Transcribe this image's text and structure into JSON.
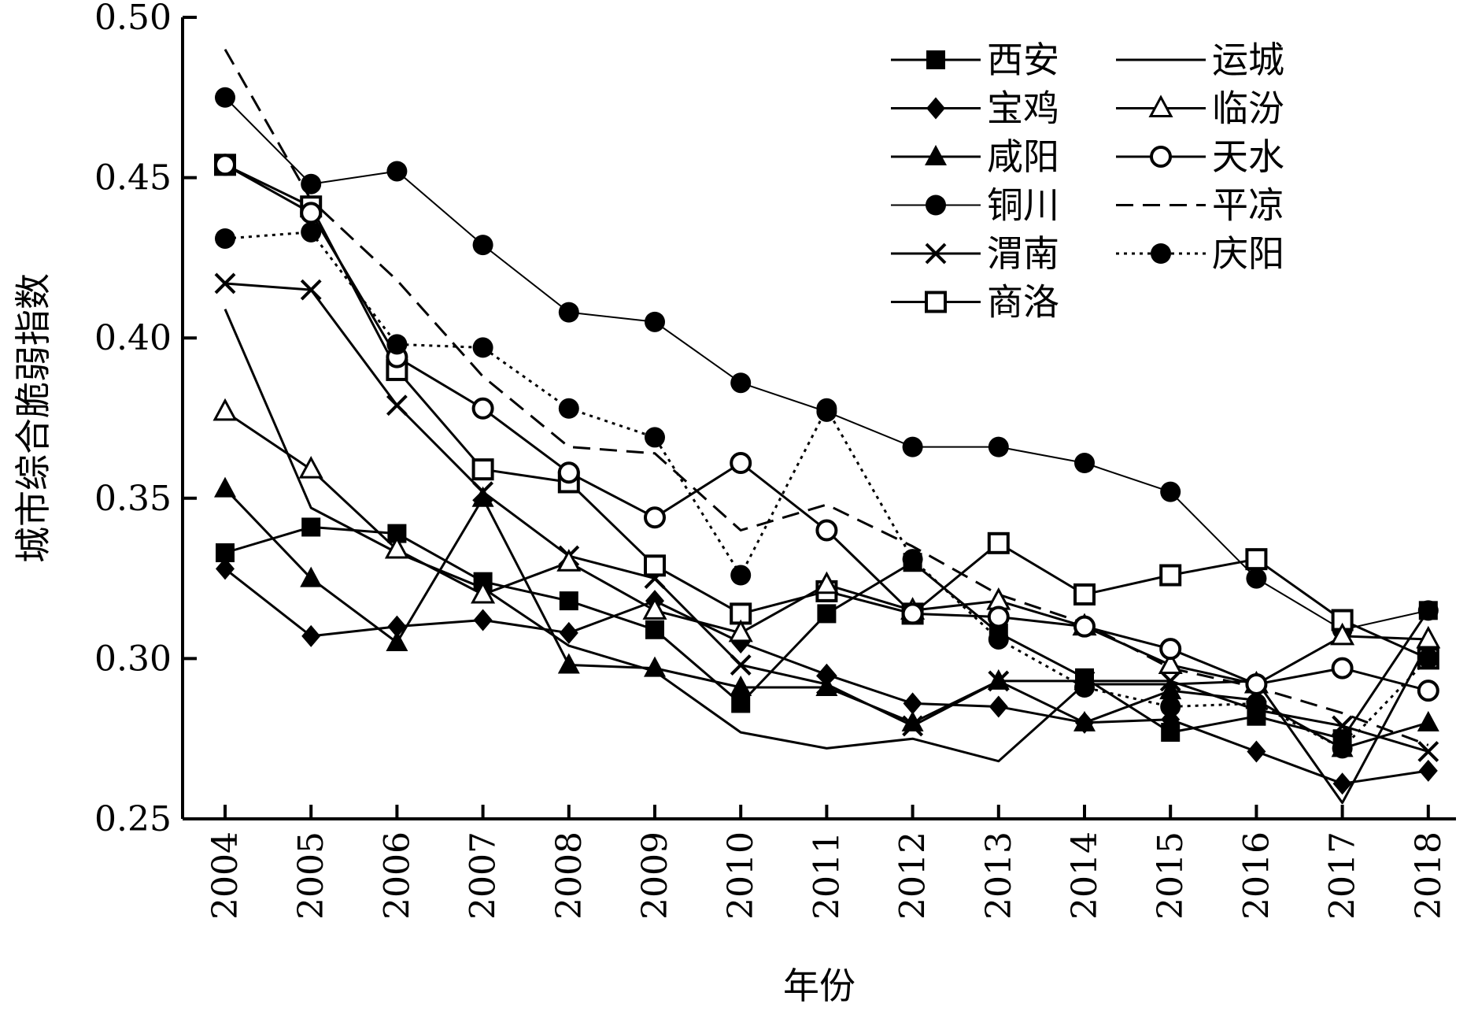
{
  "chart_data": {
    "type": "line",
    "title": "",
    "xlabel": "年份",
    "ylabel": "城市综合脆弱指数",
    "x": [
      "2004",
      "2005",
      "2006",
      "2007",
      "2008",
      "2009",
      "2010",
      "2011",
      "2012",
      "2013",
      "2014",
      "2015",
      "2016",
      "2017",
      "2018"
    ],
    "ylim": [
      0.25,
      0.5
    ],
    "yticks": [
      "0.25",
      "0.30",
      "0.35",
      "0.40",
      "0.45",
      "0.50"
    ],
    "legend_position": "top-right",
    "grid": false,
    "series": [
      {
        "name": "西安",
        "marker": "square-filled",
        "line": "solid",
        "values": [
          0.333,
          0.341,
          0.339,
          0.324,
          0.318,
          0.309,
          0.286,
          0.314,
          0.33,
          0.308,
          0.294,
          0.277,
          0.282,
          0.275,
          0.315
        ]
      },
      {
        "name": "宝鸡",
        "marker": "diamond-filled",
        "line": "solid",
        "values": [
          0.328,
          0.307,
          0.31,
          0.312,
          0.308,
          0.318,
          0.305,
          0.295,
          0.286,
          0.285,
          0.28,
          0.281,
          0.271,
          0.261,
          0.265
        ]
      },
      {
        "name": "咸阳",
        "marker": "triangle-filled",
        "line": "solid",
        "values": [
          0.353,
          0.325,
          0.305,
          0.35,
          0.298,
          0.297,
          0.291,
          0.291,
          0.28,
          0.293,
          0.28,
          0.29,
          0.287,
          0.272,
          0.28
        ]
      },
      {
        "name": "铜川",
        "marker": "circle-filled",
        "line": "solid-thin",
        "values": [
          0.475,
          0.448,
          0.452,
          0.429,
          0.408,
          0.405,
          0.386,
          0.377,
          0.366,
          0.366,
          0.361,
          0.352,
          0.325,
          0.309,
          0.315
        ]
      },
      {
        "name": "渭南",
        "marker": "x",
        "line": "solid",
        "values": [
          0.417,
          0.415,
          0.379,
          0.352,
          0.332,
          0.325,
          0.298,
          0.292,
          0.279,
          0.293,
          0.293,
          0.293,
          0.284,
          0.279,
          0.271
        ]
      },
      {
        "name": "商洛",
        "marker": "square-open",
        "line": "solid",
        "values": [
          0.454,
          0.441,
          0.39,
          0.359,
          0.355,
          0.329,
          0.314,
          0.321,
          0.314,
          0.336,
          0.32,
          0.326,
          0.331,
          0.312,
          0.3
        ]
      },
      {
        "name": "运城",
        "marker": "none",
        "line": "solid",
        "values": [
          0.409,
          0.347,
          0.333,
          0.322,
          0.304,
          0.296,
          0.277,
          0.272,
          0.275,
          0.268,
          0.292,
          0.292,
          0.293,
          0.255,
          0.305
        ]
      },
      {
        "name": "临汾",
        "marker": "triangle-open",
        "line": "solid",
        "values": [
          0.377,
          0.359,
          0.334,
          0.32,
          0.33,
          0.315,
          0.308,
          0.323,
          0.315,
          0.318,
          0.31,
          0.298,
          0.292,
          0.307,
          0.306
        ]
      },
      {
        "name": "天水",
        "marker": "circle-open",
        "line": "solid",
        "values": [
          0.454,
          0.439,
          0.394,
          0.378,
          0.358,
          0.344,
          0.361,
          0.34,
          0.314,
          0.313,
          0.31,
          0.303,
          0.292,
          0.297,
          0.29
        ]
      },
      {
        "name": "平凉",
        "marker": "none",
        "line": "dashed",
        "values": [
          0.49,
          0.443,
          0.418,
          0.388,
          0.366,
          0.364,
          0.34,
          0.348,
          0.335,
          0.32,
          0.311,
          0.297,
          0.291,
          0.283,
          0.273
        ]
      },
      {
        "name": "庆阳",
        "marker": "circle-filled",
        "line": "dotted",
        "values": [
          0.431,
          0.433,
          0.398,
          0.397,
          0.378,
          0.369,
          0.326,
          0.378,
          0.331,
          0.306,
          0.291,
          0.285,
          0.286,
          0.272,
          0.3
        ]
      }
    ],
    "legend_columns": [
      [
        "西安",
        "宝鸡",
        "咸阳",
        "铜川",
        "渭南",
        "商洛"
      ],
      [
        "运城",
        "临汾",
        "天水",
        "平凉",
        "庆阳"
      ]
    ]
  }
}
